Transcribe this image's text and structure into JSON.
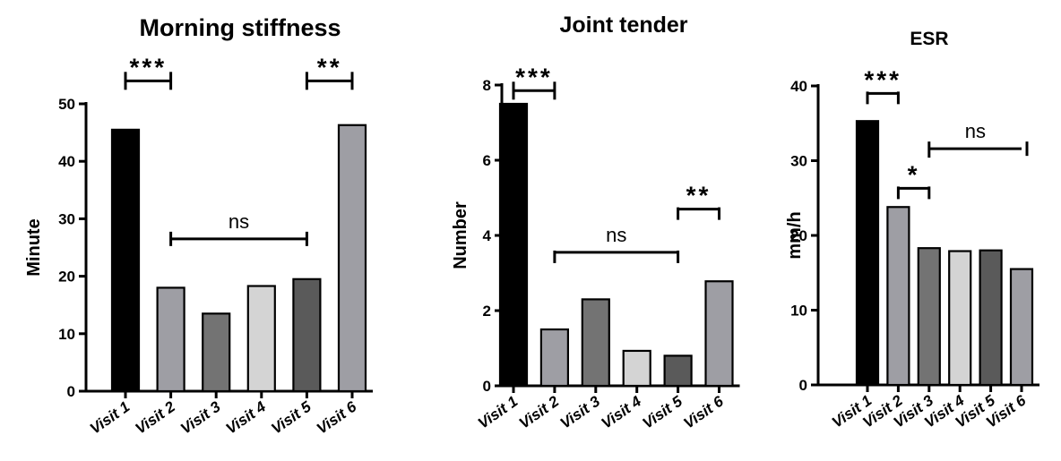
{
  "chart_data": [
    {
      "type": "bar",
      "title": "Morning stiffness",
      "ylabel": "Minute",
      "categories": [
        "Visit 1",
        "Visit 2",
        "Visit 3",
        "Visit 4",
        "Visit 5",
        "Visit 6"
      ],
      "values": [
        45.5,
        18,
        13.5,
        18.3,
        19.5,
        46.3
      ],
      "colors": [
        "#000000",
        "#9e9ea4",
        "#737373",
        "#d4d4d4",
        "#5a5a5a",
        "#9e9ea4"
      ],
      "ylim": [
        0,
        50
      ],
      "yticks": [
        0,
        10,
        20,
        30,
        40,
        50
      ],
      "annotations": [
        {
          "label": "***",
          "from": "Visit 1",
          "to": "Visit 2",
          "y": 54,
          "style": "cap-up"
        },
        {
          "label": "**",
          "from": "Visit 5",
          "to": "Visit 6",
          "y": 54,
          "style": "cap-up"
        },
        {
          "label": "ns",
          "from": "Visit 2",
          "to": "Visit 5",
          "y": 26.5,
          "style": "end-ticks"
        }
      ]
    },
    {
      "type": "bar",
      "title": "Joint tender",
      "ylabel": "Number",
      "categories": [
        "Visit 1",
        "Visit 2",
        "Visit 3",
        "Visit 4",
        "Visit 5",
        "Visit 6"
      ],
      "values": [
        7.5,
        1.5,
        2.3,
        0.93,
        0.8,
        2.78
      ],
      "colors": [
        "#000000",
        "#9e9ea4",
        "#737373",
        "#d4d4d4",
        "#5a5a5a",
        "#9e9ea4"
      ],
      "ylim": [
        0,
        8
      ],
      "yticks": [
        0,
        2,
        4,
        6,
        8
      ],
      "annotations": [
        {
          "label": "***",
          "from": "Visit 1",
          "to": "Visit 2",
          "y": 7.85,
          "style": "cap-up"
        },
        {
          "label": "**",
          "from": "Visit 5",
          "to": "Visit 6",
          "y": 4.7,
          "style": "cap-down"
        },
        {
          "label": "ns",
          "from": "Visit 2",
          "to": "Visit 5",
          "y": 3.55,
          "style": "cap-down"
        }
      ]
    },
    {
      "type": "bar",
      "title": "ESR",
      "ylabel": "mm/h",
      "categories": [
        "Visit 1",
        "Visit 2",
        "Visit 3",
        "Visit 4",
        "Visit 5",
        "Visit 6"
      ],
      "values": [
        35.3,
        23.8,
        18.3,
        17.9,
        18,
        15.5
      ],
      "colors": [
        "#000000",
        "#9e9ea4",
        "#737373",
        "#d4d4d4",
        "#5a5a5a",
        "#9e9ea4"
      ],
      "ylim": [
        0,
        40
      ],
      "yticks": [
        0,
        10,
        20,
        30,
        40
      ],
      "annotations": [
        {
          "label": "***",
          "from": "Visit 1",
          "to": "Visit 2",
          "y": 39,
          "style": "cap-down"
        },
        {
          "label": "*",
          "from": "Visit 2",
          "to": "Visit 3",
          "y": 26.3,
          "style": "cap-down"
        },
        {
          "label": "ns",
          "from": "Visit 3",
          "to": "Visit 6",
          "y": 31.6,
          "style": "cap-down-open"
        }
      ]
    }
  ]
}
